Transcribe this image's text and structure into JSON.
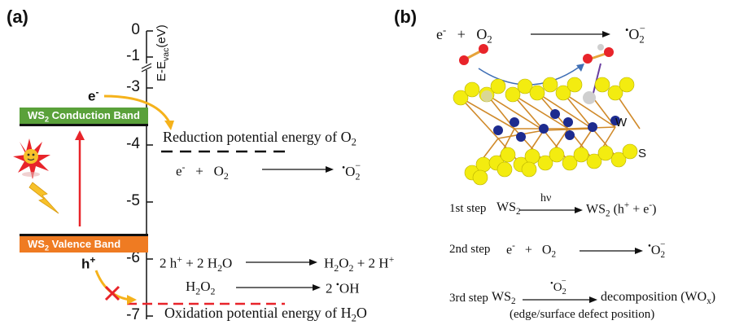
{
  "panel_a": {
    "label": "(a)",
    "axis_title": "E-E",
    "axis_title_sub": "vac",
    "axis_title_unit": "(eV)",
    "ticks": [
      "0",
      "-1",
      "-3",
      "-4",
      "-5",
      "-6",
      "-7"
    ],
    "conduction_band": {
      "prefix": "WS",
      "sub": "2",
      "suffix": " Conduction Band",
      "color": "#5aa13a"
    },
    "valence_band": {
      "prefix": "WS",
      "sub": "2",
      "suffix": " Valence Band",
      "color": "#ef7b22"
    },
    "electron": "e",
    "electron_sup": "-",
    "hole": "h",
    "hole_sup": "+",
    "reduction_label": "Reduction potential energy of O",
    "reduction_sub": "2",
    "oxidation_label": "Oxidation potential energy of H",
    "oxidation_sub": "2",
    "oxidation_suffix": "O",
    "eq1": {
      "l1": "e",
      "l1_sup": "-",
      "plus": "+",
      "l2": "O",
      "l2_sub": "2",
      "r_dot": "•",
      "r": "O",
      "r_sub": "2",
      "r_sup": "−"
    },
    "eq2": {
      "left": "2 h",
      "left_sup": "+",
      "mid": " + 2 H",
      "mid_sub": "2",
      "mid_end": "O",
      "right": "H",
      "right_sub": "2",
      "right_mid": "O",
      "right_sub2": "2",
      "right_end": " + 2 H",
      "right_sup": "+"
    },
    "eq3": {
      "left": "H",
      "left_sub": "2",
      "left_mid": "O",
      "left_sub2": "2",
      "right": "2 ",
      "right_dot": "•",
      "right_end": "OH"
    }
  },
  "panel_b": {
    "label": "(b)",
    "top_eq": {
      "l1": "e",
      "l1_sup": "-",
      "plus": "+",
      "l2": "O",
      "l2_sub": "2",
      "r_dot": "•",
      "r": "O",
      "r_sub": "2",
      "r_sup": "−"
    },
    "atom_w": "W",
    "atom_s": "S",
    "steps": [
      {
        "name": "1st step",
        "left": "WS",
        "left_sub": "2",
        "arrow_label": "hν",
        "right": "WS",
        "right_sub": "2",
        "right_end": " (h",
        "right_sup": "+",
        "right_tail": " + e",
        "right_sup2": "-",
        "right_close": ")"
      },
      {
        "name": "2nd step",
        "left": "e",
        "left_sup": "-",
        "plus": "+",
        "mid": "O",
        "mid_sub": "2",
        "r_dot": "•",
        "r": "O",
        "r_sub": "2",
        "r_sup": "−"
      },
      {
        "name": "3rd step",
        "left": "WS",
        "left_sub": "2",
        "arrow_dot": "•",
        "arrow_label": "O",
        "arrow_sub": "2",
        "arrow_sup": "−",
        "right": "decomposition (WO",
        "right_sub": "x",
        "right_close": ")",
        "note": "(edge/surface defect position)"
      }
    ]
  },
  "colors": {
    "arrow_orange": "#f5b21b",
    "arrow_red": "#e8242a",
    "ref_line_red": "#e8242a",
    "ref_line_black": "#111111",
    "curve_blue": "#3f6fb5",
    "sulfur": "#f3ec10",
    "tungsten": "#1d2b8f",
    "bond": "#d08a2a"
  }
}
